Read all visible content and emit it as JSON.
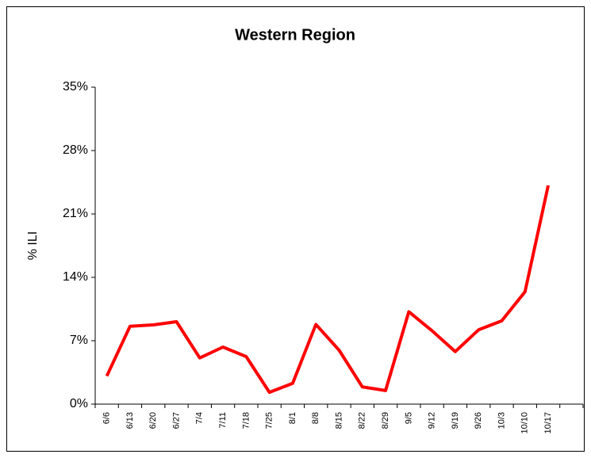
{
  "chart_data": {
    "type": "line",
    "title": "Western Region",
    "y_label": "% ILI",
    "categories": [
      "6/6",
      "6/13",
      "6/20",
      "6/27",
      "7/4",
      "7/11",
      "7/18",
      "7/25",
      "8/1",
      "8/8",
      "8/15",
      "8/22",
      "8/29",
      "9/5",
      "9/12",
      "9/19",
      "9/26",
      "10/3",
      "10/10",
      "10/17"
    ],
    "series": [
      {
        "name": "Western Region",
        "color": "#ff0000",
        "values": [
          3.1,
          8.6,
          8.75,
          9.1,
          5.1,
          6.3,
          5.25,
          1.3,
          2.3,
          8.8,
          5.95,
          1.9,
          1.5,
          10.2,
          8.1,
          5.8,
          8.2,
          9.2,
          12.4,
          24.15
        ]
      }
    ],
    "ylim": [
      0,
      35
    ],
    "yticks": [
      {
        "value": 0,
        "label": "0%"
      },
      {
        "value": 7,
        "label": "7%"
      },
      {
        "value": 14,
        "label": "14%"
      },
      {
        "value": 21,
        "label": "21%"
      },
      {
        "value": 28,
        "label": "28%"
      },
      {
        "value": 35,
        "label": "35%"
      }
    ],
    "grid": false
  }
}
